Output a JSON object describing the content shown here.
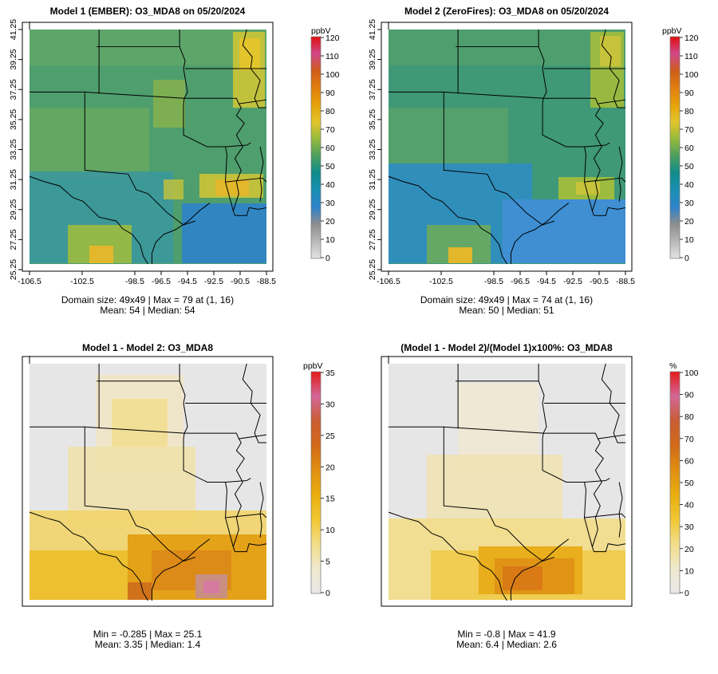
{
  "colors": {
    "conc_scale": [
      "#e3e3e3",
      "#b8b8b8",
      "#8e8e8e",
      "#2f83ca",
      "#1a8fb5",
      "#0f8c8a",
      "#4a9e60",
      "#96bb3c",
      "#e2c52c",
      "#e7a20a",
      "#e07f10",
      "#cf5d1a",
      "#d1478a",
      "#e01010"
    ],
    "diff_scale": [
      "#e8e8e8",
      "#efe9cf",
      "#f2dd8a",
      "#f1c733",
      "#e9ae10",
      "#e08f12",
      "#d26a18",
      "#c95d33",
      "#d36797",
      "#e41b1b"
    ],
    "outline": "#000000"
  },
  "panels": [
    {
      "title": "Model 1 (EMBER): O3_MDA8 on 05/20/2024",
      "legend_unit": "ppbV",
      "legend_ticks": [
        "120",
        "110",
        "100",
        "90",
        "80",
        "70",
        "60",
        "50",
        "40",
        "30",
        "20",
        "10",
        "0"
      ],
      "x_ticks": [
        "-106.5",
        "-102.5",
        "-98.5",
        "-96.5",
        "-94.5",
        "-92.5",
        "-90.5",
        "-88.5"
      ],
      "y_ticks": [
        "41.25",
        "39.25",
        "37.25",
        "35.25",
        "33.25",
        "31.25",
        "29.25",
        "27.25",
        "25.25"
      ],
      "stat_line1": "Domain size: 49x49 | Max = 79 at (1, 16)",
      "stat_line2": "Mean: 54 |  Median: 54"
    },
    {
      "title": "Model 2 (ZeroFires): O3_MDA8 on 05/20/2024",
      "legend_unit": "ppbV",
      "legend_ticks": [
        "120",
        "110",
        "100",
        "90",
        "80",
        "70",
        "60",
        "50",
        "40",
        "30",
        "20",
        "10",
        "0"
      ],
      "x_ticks": [
        "-106.5",
        "-102.5",
        "-98.5",
        "-96.5",
        "-94.5",
        "-92.5",
        "-90.5",
        "-88.5"
      ],
      "y_ticks": [
        "41.25",
        "39.25",
        "37.25",
        "35.25",
        "33.25",
        "31.25",
        "29.25",
        "27.25",
        "25.25"
      ],
      "stat_line1": "Domain size: 49x49 | Max = 74 at (1, 16)",
      "stat_line2": "Mean: 50 |  Median: 51"
    },
    {
      "title": "Model 1 - Model 2: O3_MDA8",
      "legend_unit": "ppbV",
      "legend_ticks": [
        "35",
        "30",
        "25",
        "20",
        "15",
        "10",
        "5",
        "0"
      ],
      "stat_line1": "Min = -0.285 | Max = 25.1",
      "stat_line2": "Mean: 3.35 |  Median: 1.4"
    },
    {
      "title": "(Model 1 - Model 2)/(Model 1)x100%: O3_MDA8",
      "legend_unit": "%",
      "legend_ticks": [
        "100",
        "90",
        "80",
        "70",
        "60",
        "50",
        "40",
        "30",
        "20",
        "10",
        "0"
      ],
      "stat_line1": "Min = -0.8 | Max = 41.9",
      "stat_line2": "Mean: 6.4 |  Median: 2.6"
    }
  ],
  "chart_data": [
    {
      "type": "heatmap",
      "title": "Model 1 (EMBER): O3_MDA8 on 05/20/2024",
      "units": "ppbV",
      "grid_size": [
        49,
        49
      ],
      "colorbar_range": [
        0,
        120
      ],
      "x_range": [
        -106.5,
        -88.5
      ],
      "y_range": [
        25.25,
        41.25
      ],
      "max": 79,
      "max_at": [
        1,
        16
      ],
      "mean": 54,
      "median": 54
    },
    {
      "type": "heatmap",
      "title": "Model 2 (ZeroFires): O3_MDA8 on 05/20/2024",
      "units": "ppbV",
      "grid_size": [
        49,
        49
      ],
      "colorbar_range": [
        0,
        120
      ],
      "x_range": [
        -106.5,
        -88.5
      ],
      "y_range": [
        25.25,
        41.25
      ],
      "max": 74,
      "max_at": [
        1,
        16
      ],
      "mean": 50,
      "median": 51
    },
    {
      "type": "heatmap",
      "title": "Model 1 - Model 2: O3_MDA8",
      "units": "ppbV",
      "colorbar_range": [
        0,
        35
      ],
      "min": -0.285,
      "max": 25.1,
      "mean": 3.35,
      "median": 1.4
    },
    {
      "type": "heatmap",
      "title": "(Model 1 - Model 2)/(Model 1)x100%: O3_MDA8",
      "units": "%",
      "colorbar_range": [
        0,
        100
      ],
      "min": -0.8,
      "max": 41.9,
      "mean": 6.4,
      "median": 2.6
    }
  ]
}
